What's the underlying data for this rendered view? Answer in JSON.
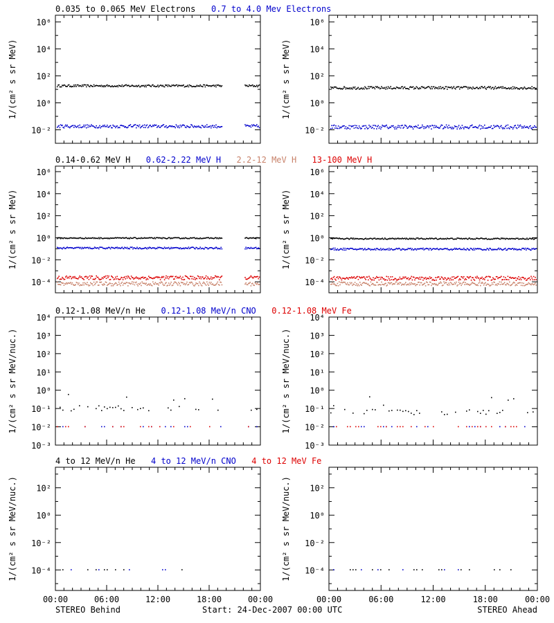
{
  "chart_data": {
    "type": "scatter",
    "x_ticks": [
      "00:00",
      "06:00",
      "12:00",
      "18:00",
      "00:00"
    ],
    "footer": {
      "left": "STEREO Behind",
      "center": "Start: 24-Dec-2007 00:00 UTC",
      "right": "STEREO Ahead"
    },
    "panels": [
      {
        "id": "electrons",
        "ylabel": "1/(cm² s sr MeV)",
        "ylim_exp": [
          -3,
          6.5
        ],
        "ticks_exp": [
          -2,
          0,
          2,
          4,
          6
        ],
        "legend": [
          {
            "text": "0.035 to 0.065 MeV Electrons",
            "color": "#000000"
          },
          {
            "text": "0.7 to 4.0 Mev Electrons",
            "color": "#0000cc"
          }
        ],
        "series": [
          {
            "name": "0.035 to 0.065 MeV Electrons",
            "color": "#000000",
            "behind": {
              "log_level": 1.25,
              "spread": 0.08
            },
            "ahead": {
              "log_level": 1.1,
              "spread": 0.1
            }
          },
          {
            "name": "0.7 to 4.0 Mev Electrons",
            "color": "#0000cc",
            "behind": {
              "log_level": -1.75,
              "spread": 0.12
            },
            "ahead": {
              "log_level": -1.8,
              "spread": 0.15
            }
          }
        ]
      },
      {
        "id": "protons",
        "ylabel": "1/(cm² s sr MeV)",
        "ylim_exp": [
          -5,
          6.5
        ],
        "ticks_exp": [
          -4,
          -2,
          0,
          2,
          4,
          6
        ],
        "legend": [
          {
            "text": "0.14-0.62 MeV H",
            "color": "#000000"
          },
          {
            "text": "0.62-2.22 MeV H",
            "color": "#0000cc"
          },
          {
            "text": "2.2-12 MeV H",
            "color": "#c8826a"
          },
          {
            "text": "13-100 MeV H",
            "color": "#dd0000"
          }
        ],
        "series": [
          {
            "name": "0.14-0.62 MeV H",
            "color": "#000000",
            "behind": {
              "log_level": -0.05,
              "spread": 0.05
            },
            "ahead": {
              "log_level": -0.1,
              "spread": 0.06
            }
          },
          {
            "name": "0.62-2.22 MeV H",
            "color": "#0000cc",
            "behind": {
              "log_level": -0.95,
              "spread": 0.08
            },
            "ahead": {
              "log_level": -1.05,
              "spread": 0.09
            }
          },
          {
            "name": "2.2-12 MeV H",
            "color": "#c8826a",
            "behind": {
              "log_level": -4.2,
              "spread": 0.18
            },
            "ahead": {
              "log_level": -4.2,
              "spread": 0.18
            }
          },
          {
            "name": "13-100 MeV H",
            "color": "#dd0000",
            "behind": {
              "log_level": -3.65,
              "spread": 0.18
            },
            "ahead": {
              "log_level": -3.7,
              "spread": 0.18
            }
          }
        ]
      },
      {
        "id": "heavy-low",
        "ylabel": "1/(cm² s sr MeV/nuc.)",
        "ylim_exp": [
          -3,
          4
        ],
        "ticks_exp": [
          -3,
          -2,
          -1,
          0,
          1,
          2,
          3,
          4
        ],
        "legend": [
          {
            "text": "0.12-1.08 MeV/n He",
            "color": "#000000"
          },
          {
            "text": "0.12-1.08 MeV/n CNO",
            "color": "#0000cc"
          },
          {
            "text": "0.12-1.08 MeV Fe",
            "color": "#dd0000"
          }
        ],
        "series": [
          {
            "name": "0.12-1.08 MeV/n He",
            "color": "#000000",
            "behind": {
              "log_level": -1.0,
              "spread": 0.15
            },
            "ahead": {
              "log_level": -1.2,
              "spread": 0.15
            }
          },
          {
            "name": "0.12-1.08 MeV/n CNO",
            "color": "#0000cc",
            "behind": {
              "log_level": -2.0,
              "spread": 0.0
            },
            "ahead": {
              "log_level": -2.0,
              "spread": 0.0
            }
          },
          {
            "name": "0.12-1.08 MeV Fe",
            "color": "#dd0000",
            "behind": {
              "log_level": -2.0,
              "spread": 0.0
            },
            "ahead": {
              "log_level": -2.0,
              "spread": 0.0
            }
          }
        ]
      },
      {
        "id": "heavy-high",
        "ylabel": "1/(cm² s sr MeV/nuc.)",
        "ylim_exp": [
          -5.5,
          3.5
        ],
        "ticks_exp": [
          -4,
          -2,
          0,
          2
        ],
        "legend": [
          {
            "text": "4 to 12 MeV/n He",
            "color": "#000000"
          },
          {
            "text": "4 to 12 MeV/n CNO",
            "color": "#0000cc"
          },
          {
            "text": "4 to 12 MeV Fe",
            "color": "#dd0000"
          }
        ],
        "series": [
          {
            "name": "4 to 12 MeV/n He",
            "color": "#000000",
            "behind": {
              "log_level": -4.0,
              "spread": 0.0
            },
            "ahead": {
              "log_level": -4.0,
              "spread": 0.0
            }
          },
          {
            "name": "4 to 12 MeV/n CNO",
            "color": "#0000cc",
            "behind": {
              "log_level": -4.0,
              "spread": 0.0
            },
            "ahead": {
              "log_level": -4.0,
              "spread": 0.0
            }
          }
        ]
      }
    ]
  }
}
